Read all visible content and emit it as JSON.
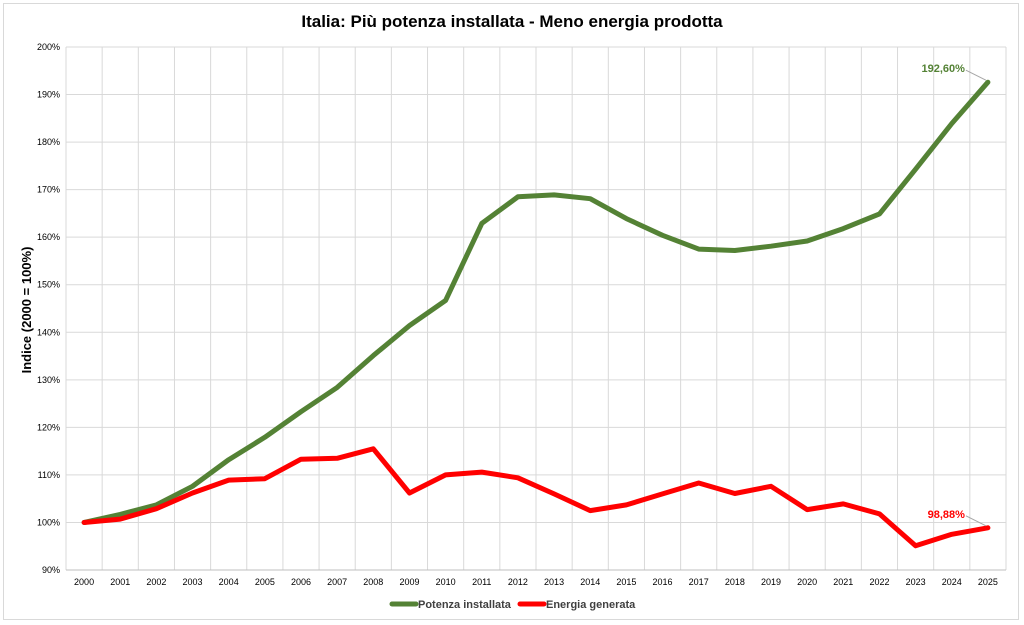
{
  "chart_data": {
    "type": "line",
    "title": "Italia: Più potenza installata - Meno energia prodotta",
    "ylabel": "Indice (2000 = 100%)",
    "xlabel": "",
    "ylim": [
      90,
      200
    ],
    "yticks": [
      90,
      100,
      110,
      120,
      130,
      140,
      150,
      160,
      170,
      180,
      190,
      200
    ],
    "ytick_labels": [
      "90%",
      "100%",
      "110%",
      "120%",
      "130%",
      "140%",
      "150%",
      "160%",
      "170%",
      "180%",
      "190%",
      "200%"
    ],
    "categories": [
      "2000",
      "2001",
      "2002",
      "2003",
      "2004",
      "2005",
      "2006",
      "2007",
      "2008",
      "2009",
      "2010",
      "2011",
      "2012",
      "2013",
      "2014",
      "2015",
      "2016",
      "2017",
      "2018",
      "2019",
      "2020",
      "2021",
      "2022",
      "2023",
      "2024",
      "2025"
    ],
    "grid": true,
    "legend_position": "bottom",
    "series": [
      {
        "name": "Potenza installata",
        "color": "#548235",
        "values": [
          100,
          101.7,
          103.7,
          107.6,
          113.2,
          117.9,
          123.3,
          128.4,
          135.1,
          141.4,
          146.7,
          162.9,
          168.5,
          168.9,
          168.1,
          163.9,
          160.4,
          157.5,
          157.2,
          158.1,
          159.2,
          161.8,
          164.9,
          174.3,
          183.9,
          192.6
        ]
      },
      {
        "name": "Energia generata",
        "color": "#ff0000",
        "values": [
          100,
          100.7,
          102.9,
          106.2,
          108.9,
          109.2,
          113.3,
          113.5,
          115.5,
          106.2,
          110.0,
          110.6,
          109.4,
          106.0,
          102.5,
          103.7,
          106.0,
          108.3,
          106.1,
          107.6,
          102.7,
          103.9,
          101.8,
          95.1,
          97.5,
          98.88
        ]
      }
    ],
    "annotations": [
      {
        "series": 0,
        "label": "192,60%",
        "color": "#548235"
      },
      {
        "series": 1,
        "label": "98,88%",
        "color": "#ff0000"
      }
    ]
  }
}
